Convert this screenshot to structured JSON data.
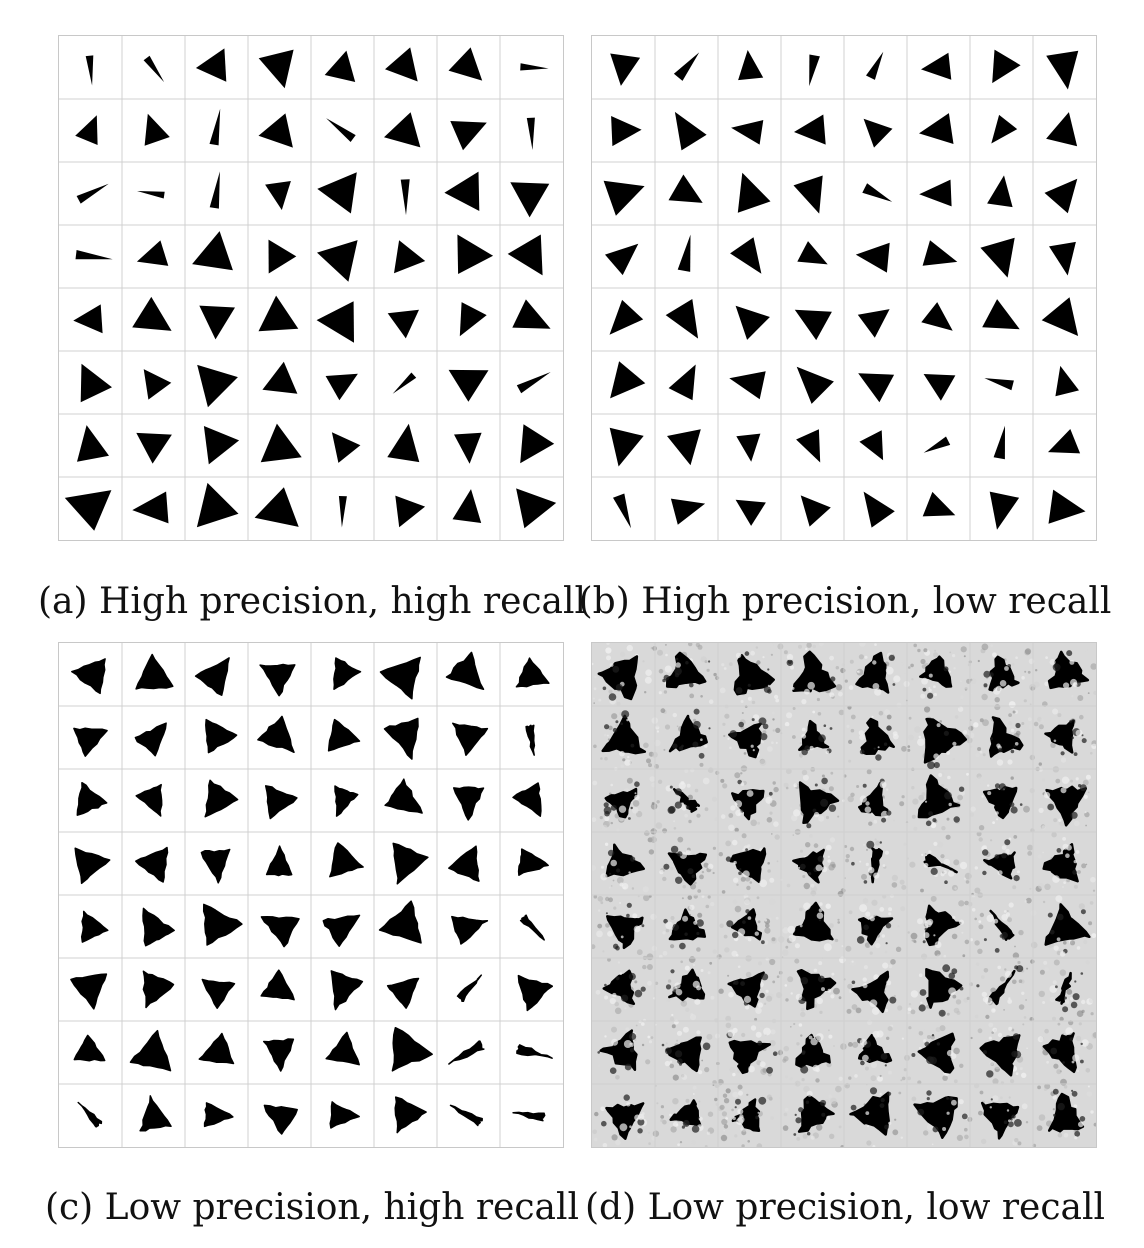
{
  "figure": {
    "grid_rows": 8,
    "grid_cols": 8,
    "shape_color": "#000000",
    "grid_line_color": "#d0d0d0",
    "noise_background_color": "#d9d9d9",
    "panels": [
      {
        "id": "a",
        "caption": "(a) High precision, high recall",
        "style": "clean"
      },
      {
        "id": "b",
        "caption": "(b) High precision, low recall",
        "style": "clean-uniform"
      },
      {
        "id": "c",
        "caption": "(c) Low precision, high recall",
        "style": "blobby"
      },
      {
        "id": "d",
        "caption": "(d) Low precision, low recall",
        "style": "noisy"
      }
    ]
  }
}
